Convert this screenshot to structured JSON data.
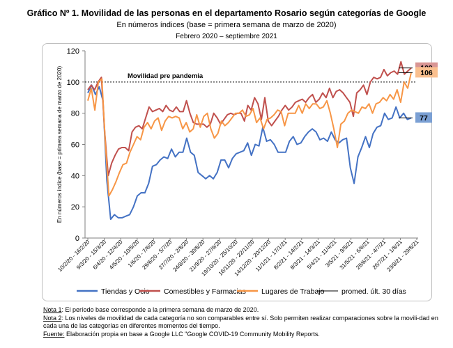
{
  "header": {
    "title": "Gráfico Nº 1. Movilidad de las personas en el departamento Rosario según categorías de Google",
    "subtitle": "En números índices (base = primera semana de marzo de 2020)",
    "period": "Febrero 2020 – septiembre 2021"
  },
  "notes": {
    "n1_label": "Nota 1",
    "n1_text": ": El período base corresponde a la primera semana de marzo de 2020.",
    "n2_label": "Nota 2",
    "n2_text": ": Los niveles de movilidad de cada categoría no son comparables entre sí. Solo permiten realizar comparaciones sobre la movili-dad en cada una de las categorías en diferentes momentos del tiempo.",
    "source_label": "Fuente:",
    "source_text": " Elaboración propia en base a Google LLC \"Google COVID-19 Community Mobility Reports."
  },
  "chart_data": {
    "type": "line",
    "ylabel": "En números índice (base = primera semana de marzo de 2020)",
    "ylim": [
      0,
      120
    ],
    "yticks": [
      0,
      20,
      40,
      60,
      80,
      100,
      120
    ],
    "x_tick_labels": [
      "10/2/20 - 16/2/20",
      "9/3/20 - 15/3/20",
      "6/4/20 - 12/4/20",
      "4/5/20 - 10/5/20",
      "1/6/20 - 7/6/20",
      "29/6/20 - 5/7/20",
      "27/7/20 - 2/8/20",
      "24/8/20 - 30/8/20",
      "21/9/20 - 27/9/20",
      "19/10/20 - 25/10/20",
      "16/11/20 - 22/11/20",
      "14/12/20 - 20/12/20",
      "11/1/21 - 17/1/21",
      "8/2/21 - 14/2/21",
      "8/3/21 - 14/3/21",
      "5/4/21 - 11/4/21",
      "3/5/21 - 9/5/21",
      "31/5/21 - 6/6/21",
      "28/6/21 - 4/7/21",
      "26/7/21 - 1/8/21",
      "23/8/21 - 29/8/21"
    ],
    "reference_line": {
      "value": 100,
      "label": "Movilidad pre pandemia"
    },
    "series": [
      {
        "name": "Tiendas y Ocio",
        "color": "#4472c4",
        "end_label": "77",
        "end_color": "#7ba0d4",
        "values": [
          93,
          98,
          92,
          97,
          88,
          37,
          12,
          15,
          13,
          13,
          14,
          15,
          20,
          27,
          29,
          29,
          35,
          46,
          47,
          50,
          52,
          51,
          57,
          52,
          55,
          55,
          64,
          55,
          53,
          42,
          40,
          38,
          40,
          38,
          42,
          50,
          50,
          45,
          51,
          54,
          55,
          56,
          61,
          53,
          60,
          59,
          71,
          62,
          63,
          60,
          55,
          55,
          55,
          62,
          65,
          60,
          61,
          65,
          68,
          70,
          68,
          63,
          64,
          62,
          68,
          63,
          61,
          63,
          64,
          45,
          35,
          52,
          58,
          65,
          58,
          67,
          71,
          72,
          80,
          76,
          77,
          84,
          77,
          80,
          76,
          77
        ]
      },
      {
        "name": "Comestibles y Farmacias",
        "color": "#c0504d",
        "end_label": "109",
        "end_color": "#d99694",
        "values": [
          95,
          98,
          95,
          100,
          103,
          67,
          40,
          48,
          53,
          57,
          58,
          58,
          56,
          68,
          71,
          72,
          70,
          77,
          84,
          81,
          82,
          83,
          81,
          85,
          82,
          81,
          84,
          81,
          81,
          88,
          80,
          74,
          73,
          73,
          73,
          71,
          73,
          80,
          77,
          73,
          76,
          79,
          80,
          79,
          80,
          80,
          75,
          85,
          82,
          90,
          86,
          76,
          90,
          75,
          72,
          75,
          78,
          82,
          85,
          82,
          84,
          87,
          88,
          89,
          87,
          90,
          92,
          87,
          89,
          93,
          90,
          96,
          90,
          94,
          95,
          93,
          90,
          87,
          78,
          93,
          95,
          98,
          92,
          100,
          103,
          102,
          103,
          108,
          104,
          106,
          107,
          105,
          113,
          105,
          107,
          109
        ]
      },
      {
        "name": "Lugares de Trabajo",
        "color": "#f79646",
        "end_label": "106",
        "end_color": "#fac08f",
        "values": [
          88,
          96,
          82,
          100,
          102,
          60,
          27,
          31,
          36,
          42,
          47,
          48,
          55,
          60,
          65,
          63,
          71,
          74,
          70,
          75,
          77,
          69,
          75,
          78,
          77,
          78,
          77,
          70,
          74,
          68,
          70,
          79,
          71,
          78,
          80,
          70,
          64,
          67,
          75,
          72,
          74,
          77,
          80,
          80,
          82,
          78,
          79,
          83,
          74,
          77,
          70,
          76,
          77,
          79,
          82,
          81,
          72,
          80,
          80,
          80,
          85,
          80,
          86,
          83,
          86,
          86,
          83,
          84,
          88,
          80,
          70,
          58,
          73,
          75,
          80,
          82,
          81,
          80,
          84,
          83,
          86,
          80,
          86,
          87,
          90,
          88,
          92,
          89,
          95,
          87,
          100,
          96,
          106
        ]
      },
      {
        "name": "promed. últ. 30 días",
        "color": "#000000",
        "values": []
      }
    ]
  }
}
